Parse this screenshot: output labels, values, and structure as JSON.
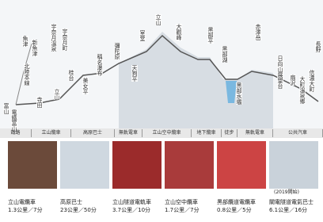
{
  "stations": [
    "富山",
    "電鐵富山",
    "寺田",
    "北陸本線",
    "魚津",
    "新魚津",
    "宇奈月溫泉",
    "宇奈月町",
    "立山",
    "桂台",
    "美女平",
    "稱名瀑布",
    "彌陀原",
    "天狗平",
    "室堂",
    "立山",
    "大觀峰",
    "黑部平",
    "黑部湖",
    "黑部水壩",
    "赤澤岳",
    "日向山展望台",
    "扇沢",
    "大町溫泉鄉",
    "信濃大町",
    "長野"
  ],
  "transport_bar": [
    "鐵路",
    "立山纜車",
    "高原巴士",
    "無軌電車",
    "立山空中纜車",
    "地下纜車",
    "徒步",
    "無軌電車",
    "公共汽車"
  ],
  "photos": [
    {
      "title": "立山電纜車",
      "detail": "1.3公里／7分"
    },
    {
      "title": "高原巴士",
      "detail": "23公里／50分"
    },
    {
      "title": "立山隧道電軌車",
      "detail": "3.7公里／10分"
    },
    {
      "title": "立山空中纜車",
      "detail": "1.7公里／7分"
    },
    {
      "title": "黑部纜道電纜車",
      "detail": "0.8公里／5分"
    },
    {
      "title": "關電隧道電氣巴士",
      "detail": "6.1公里／16分"
    }
  ],
  "note": "(2019開始)"
}
